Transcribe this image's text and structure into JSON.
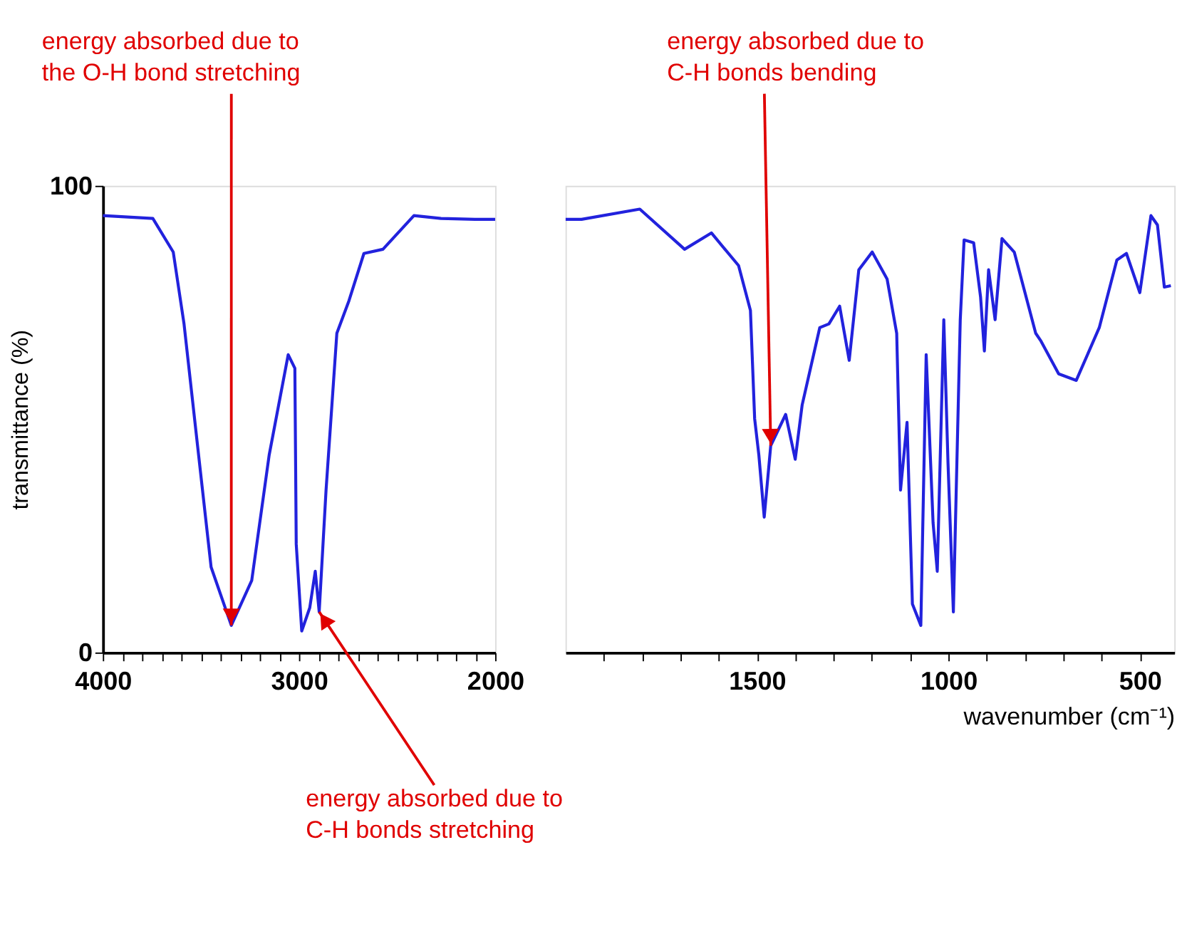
{
  "chart_data": [
    {
      "type": "line",
      "ylabel": "transmittance (%)",
      "xlim": [
        4000,
        2000
      ],
      "ylim": [
        0,
        100
      ],
      "yticks": [
        0,
        100
      ],
      "xticks": [
        4000,
        {
          "value": 3900,
          "label": null
        },
        {
          "value": 3800,
          "label": null
        },
        {
          "value": 3700,
          "label": null
        },
        {
          "value": 3600,
          "label": null
        },
        {
          "value": 3500,
          "label": null
        },
        {
          "value": 3400,
          "label": null
        },
        {
          "value": 3300,
          "label": null
        },
        {
          "value": 3200,
          "label": null
        },
        {
          "value": 3100,
          "label": null
        },
        3000,
        {
          "value": 2900,
          "label": null
        },
        {
          "value": 2800,
          "label": null
        },
        {
          "value": 2700,
          "label": null
        },
        {
          "value": 2600,
          "label": null
        },
        {
          "value": 2500,
          "label": null
        },
        {
          "value": 2400,
          "label": null
        },
        {
          "value": 2300,
          "label": null
        },
        {
          "value": 2200,
          "label": null
        },
        {
          "value": 2100,
          "label": null
        },
        2000
      ],
      "grid": false,
      "series": [
        {
          "color": "#2222dd",
          "x": [
            4000,
            3745,
            3641,
            3586,
            3517,
            3448,
            3345,
            3241,
            3152,
            3055,
            3021,
            3014,
            2986,
            2945,
            2917,
            2897,
            2862,
            2807,
            2745,
            2669,
            2572,
            2414,
            2276,
            2103,
            2000
          ],
          "values": [
            93.6,
            93,
            85.8,
            70.4,
            44.3,
            18.3,
            5.8,
            15.4,
            42.3,
            63.8,
            60.9,
            23.2,
            4.6,
            9.6,
            17.4,
            8.7,
            34.8,
            68.4,
            75.4,
            85.5,
            86.4,
            93.6,
            93,
            92.8,
            92.8
          ]
        }
      ],
      "annotations": [
        {
          "text": "energy absorbed due to\nthe O-H bond stretching",
          "x": 3345,
          "y": 5.8
        },
        {
          "text": "energy absorbed due to\nC-H bonds stretching",
          "x": 2897,
          "y": 8.7
        }
      ]
    },
    {
      "type": "line",
      "xlabel": "wavenumber (cm⁻¹)",
      "xlim": [
        2000,
        410
      ],
      "ylim": [
        0,
        100
      ],
      "tick_labels": "x",
      "xticks": [
        {
          "value": 1900,
          "label": null
        },
        {
          "value": 1800,
          "label": null
        },
        {
          "value": 1700,
          "label": null
        },
        {
          "value": 1600,
          "label": null
        },
        1500,
        {
          "value": 1400,
          "label": null
        },
        {
          "value": 1300,
          "label": null
        },
        {
          "value": 1200,
          "label": null
        },
        {
          "value": 1100,
          "label": null
        },
        1000,
        {
          "value": 900,
          "label": null
        },
        {
          "value": 800,
          "label": null
        },
        {
          "value": 700,
          "label": null
        },
        {
          "value": 600,
          "label": null
        },
        500
      ],
      "grid": false,
      "series": [
        {
          "color": "#2222dd",
          "x": [
            2000,
            1958,
            1806,
            1689,
            1619,
            1548,
            1517,
            1506,
            1495,
            1481,
            1464,
            1425,
            1400,
            1382,
            1336,
            1312,
            1284,
            1259,
            1234,
            1199,
            1160,
            1135,
            1125,
            1108,
            1094,
            1072,
            1058,
            1040,
            1029,
            1012,
            1001,
            987,
            969,
            959,
            934,
            916,
            906,
            895,
            878,
            860,
            828,
            772,
            758,
            712,
            666,
            606,
            560,
            535,
            500,
            471,
            454,
            436,
            419
          ],
          "values": [
            92.8,
            92.8,
            95,
            86.4,
            89.9,
            82.9,
            73.3,
            50.1,
            42.3,
            29,
            44.3,
            51,
            41.4,
            53,
            69.6,
            70.4,
            74.2,
            62.6,
            82,
            85.8,
            80,
            68.4,
            34.8,
            49.3,
            10.4,
            5.8,
            63.8,
            27.8,
            17.4,
            71.3,
            40.6,
            8.7,
            71.3,
            88.4,
            87.8,
            76.2,
            64.6,
            82,
            71.3,
            88.7,
            85.8,
            68.4,
            66.7,
            59.7,
            58.3,
            69.6,
            84.1,
            85.5,
            77.1,
            93.6,
            91.6,
            78.3,
            78.6
          ]
        }
      ],
      "annotations": [
        {
          "text": "energy absorbed due to\nC-H bonds bending",
          "x": 1464,
          "y": 44.3
        }
      ]
    }
  ]
}
